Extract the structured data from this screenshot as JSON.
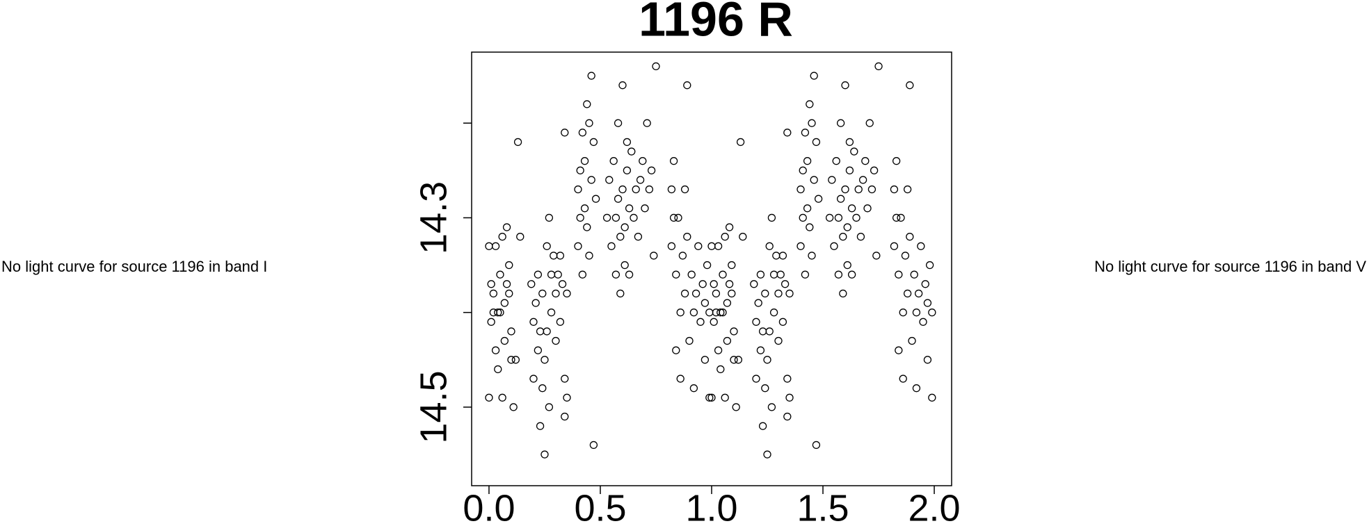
{
  "chart_data": {
    "type": "scatter",
    "title": "1196 R",
    "annotations": [
      "No light curve for source 1196 in band I",
      "No light curve for source 1196 in band V"
    ],
    "color": "#000000",
    "xlim": [
      -0.078,
      2.078
    ],
    "ylim": [
      14.583,
      14.125
    ],
    "xticks": [
      {
        "value": 0,
        "label": "0.0"
      },
      0.5,
      {
        "value": 1,
        "label": "1.0"
      },
      1.5,
      {
        "value": 2,
        "label": "2.0"
      }
    ],
    "yticks": [
      14.3,
      14.5
    ],
    "yminor_ticks": [
      14.2,
      14.4
    ],
    "x": [
      0.0,
      0.0,
      0.01,
      0.01,
      0.02,
      0.02,
      0.03,
      0.03,
      0.04,
      0.04,
      0.05,
      0.05,
      0.06,
      0.06,
      0.07,
      0.07,
      0.08,
      0.08,
      0.09,
      0.09,
      0.1,
      0.1,
      0.11,
      0.12,
      0.13,
      0.14,
      0.19,
      0.2,
      0.2,
      0.21,
      0.22,
      0.22,
      0.23,
      0.23,
      0.24,
      0.24,
      0.25,
      0.25,
      0.26,
      0.26,
      0.27,
      0.27,
      0.28,
      0.28,
      0.29,
      0.3,
      0.3,
      0.31,
      0.32,
      0.32,
      0.33,
      0.34,
      0.34,
      0.35,
      0.34,
      0.35,
      0.4,
      0.4,
      0.41,
      0.41,
      0.42,
      0.42,
      0.43,
      0.43,
      0.44,
      0.44,
      0.45,
      0.45,
      0.46,
      0.46,
      0.47,
      0.47,
      0.48,
      0.53,
      0.54,
      0.55,
      0.56,
      0.57,
      0.57,
      0.58,
      0.58,
      0.59,
      0.59,
      0.6,
      0.6,
      0.61,
      0.61,
      0.62,
      0.62,
      0.63,
      0.63,
      0.64,
      0.65,
      0.66,
      0.67,
      0.68,
      0.69,
      0.7,
      0.71,
      0.72,
      0.73,
      0.74,
      0.75,
      0.82,
      0.82,
      0.83,
      0.83,
      0.84,
      0.84,
      0.85,
      0.86,
      0.86,
      0.87,
      0.88,
      0.88,
      0.89,
      0.89,
      0.9,
      0.91,
      0.92,
      0.92,
      0.93,
      0.94,
      0.95,
      0.96,
      0.97,
      0.97,
      0.98,
      0.99,
      0.99,
      1.0,
      1.0,
      1.01,
      1.01,
      1.02,
      1.02,
      1.03,
      1.03,
      1.04,
      1.04,
      1.05,
      1.05,
      1.06,
      1.06,
      1.07,
      1.07,
      1.08,
      1.08,
      1.09,
      1.09,
      1.1,
      1.1,
      1.11,
      1.12,
      1.13,
      1.14,
      1.19,
      1.2,
      1.2,
      1.21,
      1.22,
      1.22,
      1.23,
      1.23,
      1.24,
      1.24,
      1.25,
      1.25,
      1.26,
      1.26,
      1.27,
      1.27,
      1.28,
      1.28,
      1.29,
      1.3,
      1.3,
      1.31,
      1.32,
      1.32,
      1.33,
      1.34,
      1.34,
      1.35,
      1.34,
      1.35,
      1.4,
      1.4,
      1.41,
      1.41,
      1.42,
      1.42,
      1.43,
      1.43,
      1.44,
      1.44,
      1.45,
      1.45,
      1.46,
      1.46,
      1.47,
      1.47,
      1.48,
      1.53,
      1.54,
      1.55,
      1.56,
      1.57,
      1.57,
      1.58,
      1.58,
      1.59,
      1.59,
      1.6,
      1.6,
      1.61,
      1.61,
      1.62,
      1.62,
      1.63,
      1.63,
      1.64,
      1.65,
      1.66,
      1.67,
      1.68,
      1.69,
      1.7,
      1.71,
      1.72,
      1.73,
      1.74,
      1.75,
      1.82,
      1.82,
      1.83,
      1.83,
      1.84,
      1.84,
      1.85,
      1.86,
      1.86,
      1.87,
      1.88,
      1.88,
      1.89,
      1.89,
      1.9,
      1.91,
      1.92,
      1.92,
      1.93,
      1.94,
      1.95,
      1.96,
      1.97,
      1.97,
      1.98,
      1.99,
      1.99
    ],
    "y": [
      14.49,
      14.33,
      14.37,
      14.41,
      14.38,
      14.4,
      14.33,
      14.44,
      14.4,
      14.46,
      14.4,
      14.36,
      14.49,
      14.32,
      14.39,
      14.43,
      14.37,
      14.31,
      14.38,
      14.35,
      14.45,
      14.42,
      14.5,
      14.45,
      14.22,
      14.32,
      14.37,
      14.41,
      14.47,
      14.39,
      14.44,
      14.36,
      14.52,
      14.42,
      14.48,
      14.38,
      14.45,
      14.55,
      14.33,
      14.42,
      14.5,
      14.3,
      14.4,
      14.36,
      14.34,
      14.43,
      14.38,
      14.36,
      14.41,
      14.34,
      14.37,
      14.47,
      14.51,
      14.38,
      14.21,
      14.49,
      14.27,
      14.33,
      14.25,
      14.3,
      14.21,
      14.36,
      14.24,
      14.29,
      14.18,
      14.31,
      14.2,
      14.34,
      14.15,
      14.26,
      14.22,
      14.54,
      14.28,
      14.3,
      14.26,
      14.33,
      14.24,
      14.3,
      14.36,
      14.28,
      14.2,
      14.32,
      14.38,
      14.27,
      14.16,
      14.31,
      14.35,
      14.25,
      14.22,
      14.29,
      14.36,
      14.23,
      14.3,
      14.27,
      14.32,
      14.26,
      14.24,
      14.29,
      14.2,
      14.27,
      14.25,
      14.34,
      14.14,
      14.27,
      14.33,
      14.3,
      14.24,
      14.36,
      14.44,
      14.3,
      14.4,
      14.47,
      14.34,
      14.38,
      14.27,
      14.32,
      14.16,
      14.43,
      14.36,
      14.4,
      14.48,
      14.38,
      14.33,
      14.41,
      14.37,
      14.45,
      14.39,
      14.35,
      14.49,
      14.4,
      14.49,
      14.33,
      14.37,
      14.41,
      14.38,
      14.4,
      14.33,
      14.44,
      14.4,
      14.46,
      14.4,
      14.36,
      14.49,
      14.32,
      14.39,
      14.43,
      14.37,
      14.31,
      14.38,
      14.35,
      14.45,
      14.42,
      14.5,
      14.45,
      14.22,
      14.32,
      14.37,
      14.41,
      14.47,
      14.39,
      14.44,
      14.36,
      14.52,
      14.42,
      14.48,
      14.38,
      14.45,
      14.55,
      14.33,
      14.42,
      14.5,
      14.3,
      14.4,
      14.36,
      14.34,
      14.43,
      14.38,
      14.36,
      14.41,
      14.34,
      14.37,
      14.47,
      14.51,
      14.38,
      14.21,
      14.49,
      14.27,
      14.33,
      14.25,
      14.3,
      14.21,
      14.36,
      14.24,
      14.29,
      14.18,
      14.31,
      14.2,
      14.34,
      14.15,
      14.26,
      14.22,
      14.54,
      14.28,
      14.3,
      14.26,
      14.33,
      14.24,
      14.3,
      14.36,
      14.28,
      14.2,
      14.32,
      14.38,
      14.27,
      14.16,
      14.31,
      14.35,
      14.25,
      14.22,
      14.29,
      14.36,
      14.23,
      14.3,
      14.27,
      14.32,
      14.26,
      14.24,
      14.29,
      14.2,
      14.27,
      14.25,
      14.34,
      14.14,
      14.27,
      14.33,
      14.3,
      14.24,
      14.36,
      14.44,
      14.3,
      14.4,
      14.47,
      14.34,
      14.38,
      14.27,
      14.32,
      14.16,
      14.43,
      14.36,
      14.4,
      14.48,
      14.38,
      14.33,
      14.41,
      14.37,
      14.45,
      14.39,
      14.35,
      14.49,
      14.4
    ]
  }
}
